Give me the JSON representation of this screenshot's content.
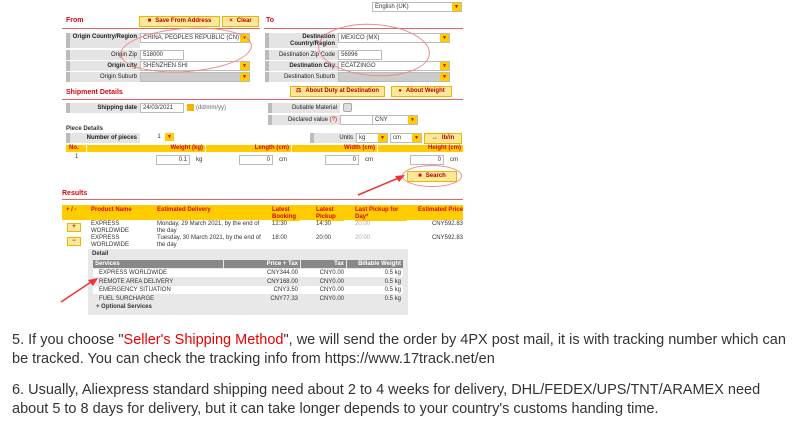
{
  "language": "English (UK)",
  "from": {
    "title": "From",
    "save_label": "Save From Address",
    "clear_label": "Clear",
    "country_label": "Origin Country/Region",
    "country": "CHINA, PEOPLES REPUBLIC (CN)",
    "zip_label": "Origin Zip",
    "zip": "518000",
    "city_label": "Origin city",
    "city": "SHENZHEN SHI",
    "suburb_label": "Origin Suburb"
  },
  "to": {
    "title": "To",
    "country_label": "Destination Country/Region",
    "country": "MEXICO (MX)",
    "zip_label": "Destination Zip Code",
    "zip": "56996",
    "city_label": "Destination City",
    "city": "ECATZINGO",
    "suburb_label": "Destination Suburb"
  },
  "shipment": {
    "title": "Shipment Details",
    "duty_label": "About Duty at Destination",
    "weight_label": "About Weight",
    "date_label": "Shipping date",
    "date": "24/03/2021",
    "date_format": "(dd/mm/yy)",
    "dutiable_label": "Dutiable Material",
    "declared_label": "Declared value",
    "declared_help": "(?)",
    "currency": "CNY"
  },
  "pieces": {
    "title": "Piece Details",
    "count_label": "Number of pieces",
    "count": "1",
    "units_label": "Units",
    "unit_weight": "kg",
    "unit_length": "cm",
    "toggle_label": "lb/in",
    "headers": [
      "No.",
      "Weight (kg)",
      "Length (cm)",
      "Width (cm)",
      "Height (cm)"
    ],
    "row": {
      "no": "1",
      "weight": "0.1",
      "weight_unit": "kg",
      "length": "0",
      "width": "0",
      "height": "0",
      "dim_unit": "cm"
    }
  },
  "search_label": "Search",
  "results": {
    "title": "Results",
    "headers": [
      "+ / -",
      "Product Name",
      "Estimated Delivery",
      "Latest Booking",
      "Latest Pickup",
      "Last Pickup for Day*",
      "Estimated Price"
    ],
    "rows": [
      {
        "toggle": "+",
        "product": "EXPRESS WORLDWIDE",
        "delivery": "Monday, 29 March 2021, by the end of the day",
        "booking": "12:30",
        "pickup": "14:30",
        "last": "20:00",
        "price": "CNY592.83"
      },
      {
        "toggle": "−",
        "product": "EXPRESS WORLDWIDE",
        "delivery": "Tuesday, 30 March 2021, by the end of the day",
        "booking": "18:00",
        "pickup": "20:00",
        "last": "20:00",
        "price": "CNY592.83"
      }
    ],
    "detail": {
      "title": "Detail",
      "headers": [
        "Services",
        "Price + Tax",
        "Tax",
        "Billable Weight"
      ],
      "rows": [
        [
          "EXPRESS WORLDWIDE",
          "CNY344.00",
          "CNY0.00",
          "0.5 kg"
        ],
        [
          "REMOTE AREA DELIVERY",
          "CNY168.00",
          "CNY0.00",
          "0.5 kg"
        ],
        [
          "EMERGENCY SITUATION",
          "CNY3.50",
          "CNY0.00",
          "0.5 kg"
        ],
        [
          "FUEL SURCHARGE",
          "CNY77.33",
          "CNY0.00",
          "0.5 kg"
        ]
      ],
      "optional": "+ Optional Services"
    }
  },
  "notes": {
    "p5_a": "5. If you choose \"",
    "p5_hl": "Seller's Shipping Method",
    "p5_b": "\", we will send the order by 4PX post mail, it is with tracking number which can be tracked. You can check the tracking info from https://www.17track.net/en",
    "p6": "6. Usually, Aliexpress standard shipping need about 2 to 4 weeks for delivery, DHL/FEDEX/UPS/TNT/ARAMEX need about 5 to 8 days for delivery, but it can take longer depends to your country's customs handing time."
  },
  "colors": {
    "accent": "#d40511",
    "header": "#ffcc00",
    "button": "#fde79a"
  }
}
